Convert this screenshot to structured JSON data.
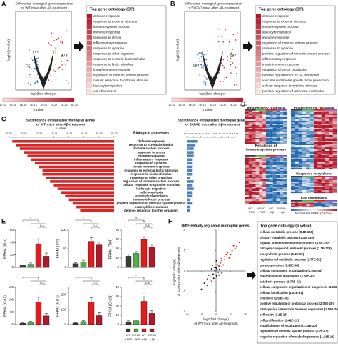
{
  "panel_a": {
    "letter": "A",
    "title_lines": [
      "Differential microglial gene expression",
      "of WT mice after Aβ-treatment"
    ],
    "y_label": "-log10(p value)",
    "x_label": "log2(fold change)",
    "down_count": 72,
    "up_count": 373,
    "go_title": "Top gene ontology (BP)",
    "terms": [
      "defense response",
      "response to external stimulus",
      "immune system process",
      "immune response",
      "response to stress",
      "inflammatory response",
      "response to cytokine",
      "response to other organism",
      "response to external biotic stimulus",
      "response to biotic stimulus",
      "innate immune response",
      "regulation of immune system process",
      "cellular response to cytokine stimulus",
      "leukocyte migration",
      "cell chemotaxis"
    ],
    "legend_title": "p value",
    "legend_ticks": [
      "1E-02",
      "1E-06",
      "1E-10",
      "1E-14",
      "1E-18",
      "1E-22",
      "1E-26",
      "1E-30"
    ]
  },
  "panel_b": {
    "letter": "B",
    "title_lines": [
      "Differential microglial gene expression",
      "of 5XFAD mice after Aβ-treatment"
    ],
    "y_label": "-log10(p value)",
    "x_label": "log2(fold change)",
    "down_count": 184,
    "up_count": 187,
    "go_title": "Top gene ontology (BP)",
    "terms": [
      "defense response",
      "response to external stimulus",
      "immune system process",
      "leukocyte migration",
      "immune response",
      "regulation of immune system process",
      "response to cytokine",
      "positive regulation of immune system process",
      "inflammatory response",
      "innate immune response",
      "regulation of VEGF production",
      "positive regulation of VEGF production",
      "vascular endothelial growth factor production",
      "cellular response to cytokine stimulus",
      "positive regulation of response to stimulus"
    ],
    "legend_title": "p value",
    "legend_ticks": [
      "1E-02",
      "1E-06",
      "1E-10",
      "1E-14",
      "1E-18",
      "1E-22",
      "1E-26",
      "1E-30"
    ]
  },
  "panel_c": {
    "letter": "C",
    "left_title_lines": [
      "Significance of regulated microglial genes",
      "of WT mice after Aβ-treatment"
    ],
    "right_title_lines": [
      "Significance of regulated microglial genes",
      "of 5XFAD mice after Aβ-treatment"
    ],
    "axis_label": "p value",
    "header": "Biological processes",
    "xlim": [
      1e-30,
      0.01
    ],
    "ticks": [
      {
        "value": 1e-30,
        "label": "1E-30"
      },
      {
        "value": 1e-26,
        "label": "1E-26"
      },
      {
        "value": 1e-22,
        "label": "1E-22"
      },
      {
        "value": 1e-18,
        "label": "1E-18"
      },
      {
        "value": 1e-14,
        "label": "1E-14"
      },
      {
        "value": 1e-10,
        "label": "1E-10"
      },
      {
        "value": 1e-06,
        "label": "1E-06"
      },
      {
        "value": 0.01,
        "label": "1E-02"
      }
    ],
    "log_scale": true,
    "terms": [
      "defense response",
      "response to external stimulus",
      "immune system process",
      "response to stress",
      "immune response",
      "inflammatory response",
      "response to cytokine",
      "innate immune response",
      "response to external biotic stimulus",
      "response to biotic stimulus",
      "response to other organism",
      "regulation of immune system process",
      "cellular response to cytokine stimulus",
      "leukocyte migration",
      "cell chemotaxis",
      "leukocyte chemotaxis",
      "immune effector process",
      "positive regulation of immune system process",
      "neutrophil chemotaxis",
      "defense response to other organism"
    ],
    "wt_color": "#d62728",
    "fad_color": "#4f81bd",
    "wt_p": [
      1e-29,
      1e-28,
      1e-27,
      1e-26,
      1e-25,
      1e-24,
      1e-23,
      1e-22,
      1e-21,
      1e-21,
      1e-20,
      1e-19,
      1e-18,
      1e-17,
      1e-16,
      1e-15,
      1e-14,
      1e-13,
      1e-12,
      1e-11
    ],
    "fad_p": [
      1e-08,
      1e-07,
      1e-06,
      1e-06,
      1e-06,
      1e-05,
      1e-05,
      1e-05,
      1e-05,
      1e-05,
      0.0001,
      1e-06,
      1e-05,
      1e-06,
      1e-05,
      1e-05,
      0.0001,
      1e-05,
      0.0001,
      0.0001
    ]
  },
  "panel_d": {
    "letter": "D",
    "clusters": [
      [
        "Inflammatory response"
      ],
      [
        "Innate immune response"
      ],
      [
        "Regulation of",
        "immune system process"
      ],
      [
        "Response to cytokine"
      ],
      [
        "Cell chemotaxis"
      ]
    ],
    "groups": [
      "WT",
      "5XFAD",
      "WT",
      "5XFAD"
    ],
    "treatments": [
      "+ PBS",
      "+ PBS",
      "+ Aβ",
      "+ Aβ"
    ],
    "group_colors": [
      "#3a3a3a",
      "#4daf4a",
      "#e41a1c",
      "#984ea3"
    ],
    "legend_title": "Normalized FPKM (Z-score)"
  },
  "panel_e": {
    "letter": "E",
    "colors": [
      "#3a3a3a",
      "#4daf4a",
      "#e41a1c",
      "#b2182b"
    ],
    "groups": [
      "WT",
      "5XFAD",
      "WT",
      "5XFAD"
    ],
    "treatments": [
      "+ PBS",
      "+ PBS",
      "+ Aβ",
      "+ Aβ"
    ],
    "charts": [
      {
        "y_label": "FPKM (Il1b)",
        "ylim": [
          0,
          60
        ],
        "yticks": [
          0,
          20,
          40,
          60
        ],
        "values": [
          3,
          5,
          38,
          18
        ],
        "errors": [
          1,
          2,
          8,
          5
        ],
        "sig": [
          "*",
          "*",
          "n.s."
        ]
      },
      {
        "y_label": "FPKM (Tnf)",
        "ylim": [
          0,
          100
        ],
        "yticks": [
          0,
          50,
          100
        ],
        "values": [
          10,
          15,
          70,
          60
        ],
        "errors": [
          3,
          4,
          10,
          8
        ],
        "sig": [
          "*",
          "*",
          "n.s."
        ]
      },
      {
        "y_label": "FPKM (Tlr4)",
        "ylim": [
          0,
          40
        ],
        "yticks": [
          0,
          10,
          20,
          30,
          40
        ],
        "values": [
          12,
          15,
          30,
          22
        ],
        "errors": [
          2,
          2,
          3,
          3
        ],
        "sig": [
          "**",
          "**",
          "n.s."
        ]
      },
      {
        "y_label": "FPKM (Ccl2)",
        "ylim": [
          0,
          150
        ],
        "yticks": [
          0,
          50,
          100,
          150
        ],
        "values": [
          5,
          10,
          90,
          35
        ],
        "errors": [
          2,
          3,
          20,
          10
        ],
        "sig": [
          "*",
          "*",
          "n.s."
        ]
      },
      {
        "y_label": "FPKM (Ccl7)",
        "ylim": [
          0,
          250
        ],
        "yticks": [
          0,
          100,
          200
        ],
        "values": [
          10,
          20,
          150,
          60
        ],
        "errors": [
          4,
          6,
          30,
          20
        ],
        "sig": [
          "*",
          "*",
          "n.s."
        ]
      },
      {
        "y_label": "FPKM (Cxcl2)",
        "ylim": [
          0,
          40
        ],
        "yticks": [
          0,
          10,
          20,
          30,
          40
        ],
        "values": [
          3,
          4,
          25,
          12
        ],
        "errors": [
          1,
          1,
          5,
          3
        ],
        "sig": [
          "*",
          "*",
          "n.s."
        ]
      }
    ]
  },
  "panel_f": {
    "letter": "F",
    "title": "Differentially regulated microglial genes",
    "x_label_lines": [
      "log2(fold change)",
      "of WT mice after Aβ-treatment"
    ],
    "y_label_lines": [
      "log2(fold change)",
      "of 5XFAD mice after Aβ-treatment"
    ],
    "xlim": [
      -10,
      10
    ],
    "ylim": [
      -10,
      10
    ],
    "xticks": [
      -10,
      -5,
      0,
      5,
      10
    ],
    "yticks": [
      -10,
      -5,
      0,
      5,
      10
    ],
    "other_color": "#111111",
    "regulated_color": "#e41a1c",
    "other": {
      "x": [
        0.3,
        -0.5,
        0.8,
        -1,
        0.2,
        -0.6,
        1.2,
        -1.5,
        0.5,
        -2,
        -3,
        -4,
        0.1,
        -0.8,
        -5,
        1,
        -2.5,
        2,
        0,
        -1.2
      ],
      "y": [
        0.5,
        0.2,
        -0.3,
        -0.8,
        -1.2,
        0.9,
        0.4,
        0.5,
        1.5,
        -2.2,
        -3.5,
        -3,
        2.5,
        -1.8,
        -4.5,
        -1,
        -1,
        -0.5,
        0.8,
        1.4
      ]
    },
    "regulated": {
      "x": [
        2,
        3,
        4,
        5,
        6,
        2.5,
        3.5,
        1.8,
        7,
        4.5,
        1,
        1.5,
        3,
        5.5,
        -2,
        -1.5,
        -3,
        2,
        8,
        6.5
      ],
      "y": [
        2.5,
        2.8,
        4.5,
        4,
        6.2,
        1.5,
        4,
        3,
        6,
        3.2,
        1.2,
        2,
        3.5,
        5,
        -1.5,
        -2.5,
        -2,
        1,
        7,
        5.5
      ]
    },
    "go_title": "Top gene ontology (p value)",
    "terms": [
      "cellular metabolic process (8.4E-165)",
      "primary metabolic process (2.4E-134)",
      "organic substance metabolic process (3.3E-132)",
      "nitrogen compound metabolic process (1.2E-123)",
      "biosynthetic process (1.4E-96)",
      "regulation of metabolic process (1.77E-52)",
      "gene expression (9.95E-48)",
      "cellular component organization (1.94E-45)",
      "macromolecule localization (1.85E-41)",
      "catabolic process (2.74E-41)",
      "cellular component organization or biogenesis (3.35E-40)",
      "cellular localization (1.02E-31)",
      "cell cycle (1.63E-30)",
      "positive regulation of biological process (2.05E-28)",
      "interspecies interaction between organisms (1.09E-26)",
      "cell death (3.1E-24)",
      "cell proliferation (2.49E-22)",
      "establishment of localization (2.38E-20)",
      "regulation of immune system process (5.2E-15)",
      "negative regulation of metabolic process (1.01E-11)"
    ]
  }
}
